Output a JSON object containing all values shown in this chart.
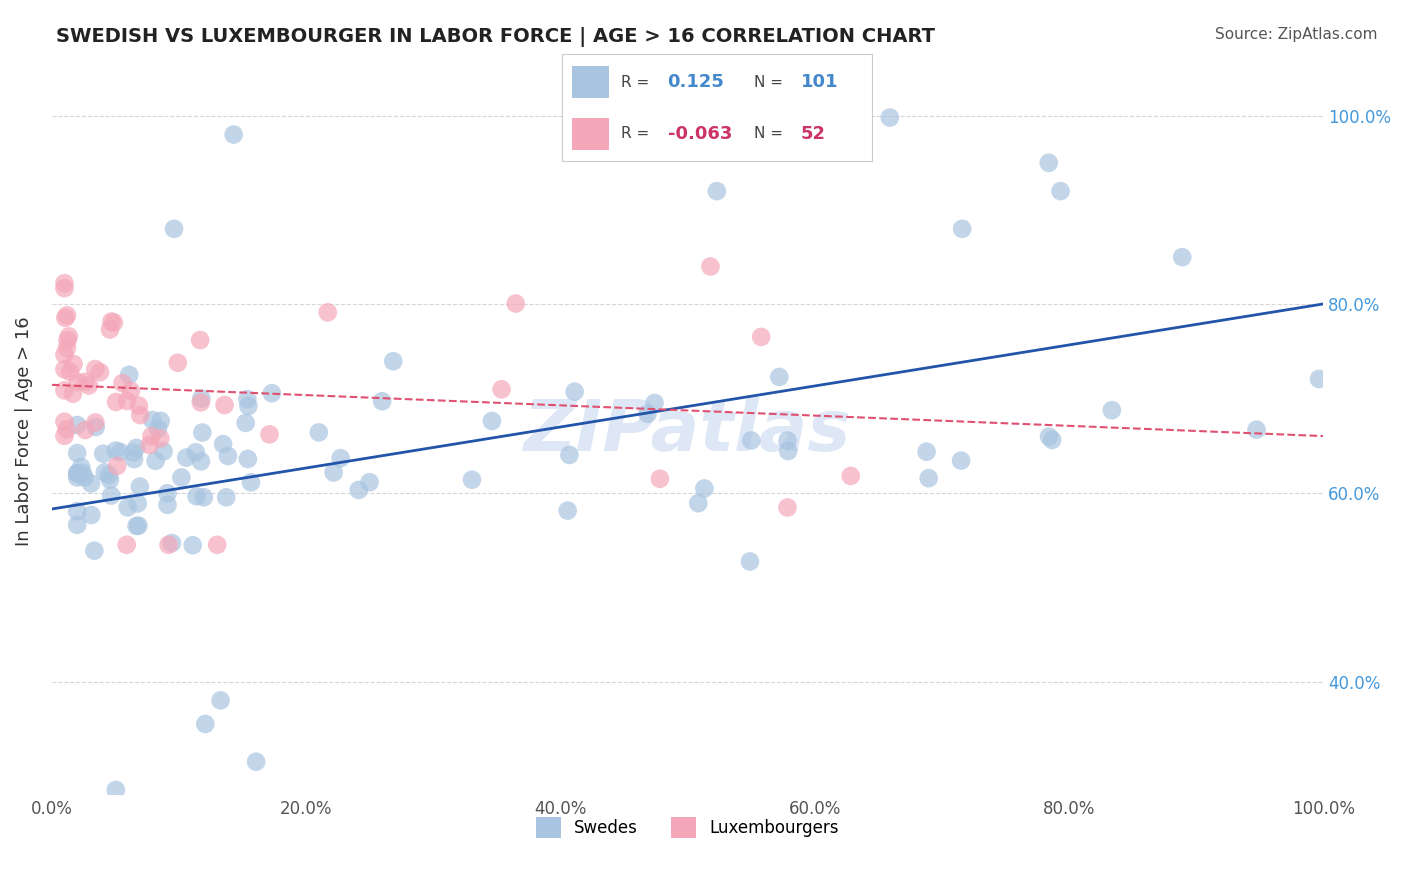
{
  "title": "SWEDISH VS LUXEMBOURGER IN LABOR FORCE | AGE > 16 CORRELATION CHART",
  "source": "Source: ZipAtlas.com",
  "ylabel": "In Labor Force | Age > 16",
  "xlabel_ticks": [
    "0.0%",
    "20.0%",
    "40.0%",
    "60.0%",
    "80.0%",
    "100.0%"
  ],
  "ylabel_ticks": [
    "40.0%",
    "60.0%",
    "80.0%",
    "100.0%"
  ],
  "x_min": 0.0,
  "x_max": 1.0,
  "y_min": 0.28,
  "y_max": 1.05,
  "r_swedish": 0.125,
  "n_swedish": 101,
  "r_luxembourger": -0.063,
  "n_luxembourger": 52,
  "color_swedish": "#a8c4e0",
  "color_luxembourger": "#f4a7b9",
  "trendline_swedish_color": "#2255aa",
  "trendline_luxembourger_color": "#e05070",
  "watermark": "ZIPatlas",
  "watermark_color": "#c8d8f0",
  "background_color": "#ffffff",
  "grid_color": "#cccccc",
  "legend_r1_label": "R =",
  "legend_r1_value": "0.125",
  "legend_n1_label": "N =",
  "legend_n1_value": "101",
  "legend_r2_label": "R =",
  "legend_r2_value": "-0.063",
  "legend_n2_label": "N =",
  "legend_n2_value": "52",
  "legend_value_color": "#4488cc",
  "legend_value2_color": "#cc3366",
  "legend_label_color": "#444444",
  "swedes_label": "Swedes",
  "luxembourgers_label": "Luxembourgers"
}
